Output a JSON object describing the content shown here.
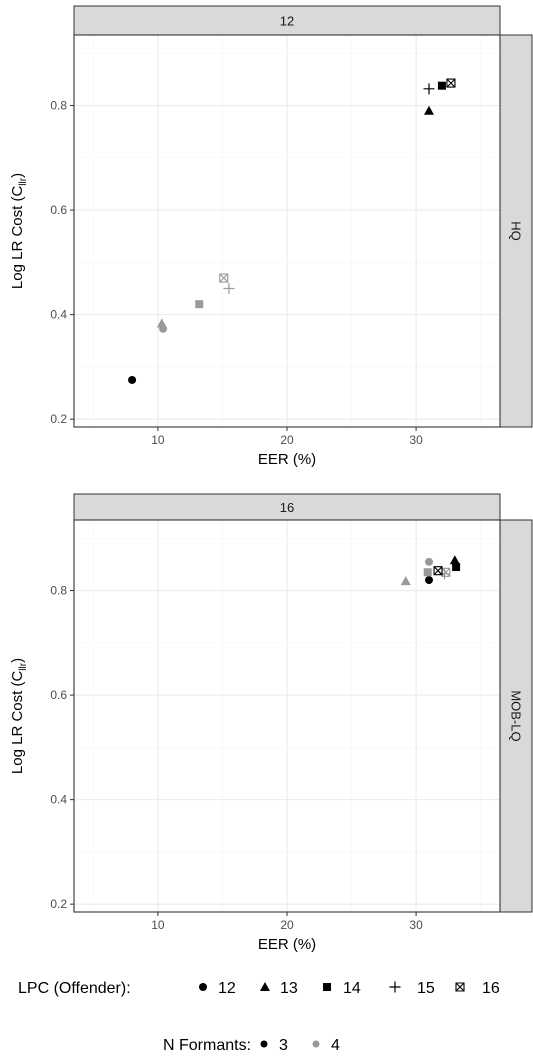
{
  "chart_data": [
    {
      "type": "scatter",
      "strip_top": "12",
      "strip_right": "HQ",
      "xlabel": "EER (%)",
      "ylabel_main": "Log LR Cost (C",
      "ylabel_sub": "llr",
      "ylabel_close": ")",
      "xlim": [
        3.5,
        36.5
      ],
      "ylim": [
        0.185,
        0.935
      ],
      "xticks": [
        10,
        20,
        30
      ],
      "yticks": [
        0.2,
        0.4,
        0.6,
        0.8
      ],
      "ytick_labels": [
        "0.2",
        "0.4",
        "0.6",
        "0.8"
      ],
      "points": [
        {
          "lpc": "12",
          "nf": "3",
          "x": 8.0,
          "y": 0.275
        },
        {
          "lpc": "12",
          "nf": "4",
          "x": 10.4,
          "y": 0.373
        },
        {
          "lpc": "13",
          "nf": "4",
          "x": 10.3,
          "y": 0.383
        },
        {
          "lpc": "14",
          "nf": "4",
          "x": 13.2,
          "y": 0.42
        },
        {
          "lpc": "15",
          "nf": "4",
          "x": 15.5,
          "y": 0.45
        },
        {
          "lpc": "16",
          "nf": "4",
          "x": 15.1,
          "y": 0.47
        },
        {
          "lpc": "13",
          "nf": "3",
          "x": 31.0,
          "y": 0.79
        },
        {
          "lpc": "15",
          "nf": "3",
          "x": 31.0,
          "y": 0.832
        },
        {
          "lpc": "14",
          "nf": "3",
          "x": 32.0,
          "y": 0.838
        },
        {
          "lpc": "16",
          "nf": "3",
          "x": 32.7,
          "y": 0.843
        }
      ]
    },
    {
      "type": "scatter",
      "strip_top": "16",
      "strip_right": "MOB-LQ",
      "xlabel": "EER (%)",
      "ylabel_main": "Log LR Cost (C",
      "ylabel_sub": "llr",
      "ylabel_close": ")",
      "xlim": [
        3.5,
        36.5
      ],
      "ylim": [
        0.185,
        0.935
      ],
      "xticks": [
        10,
        20,
        30
      ],
      "yticks": [
        0.2,
        0.4,
        0.6,
        0.8
      ],
      "ytick_labels": [
        "0.2",
        "0.4",
        "0.6",
        "0.8"
      ],
      "points": [
        {
          "lpc": "13",
          "nf": "4",
          "x": 29.2,
          "y": 0.818
        },
        {
          "lpc": "12",
          "nf": "3",
          "x": 31.0,
          "y": 0.82
        },
        {
          "lpc": "14",
          "nf": "4",
          "x": 30.9,
          "y": 0.835
        },
        {
          "lpc": "12",
          "nf": "4",
          "x": 31.0,
          "y": 0.855
        },
        {
          "lpc": "15",
          "nf": "4",
          "x": 32.2,
          "y": 0.832
        },
        {
          "lpc": "16",
          "nf": "4",
          "x": 32.3,
          "y": 0.835
        },
        {
          "lpc": "16",
          "nf": "3",
          "x": 31.7,
          "y": 0.838
        },
        {
          "lpc": "13",
          "nf": "3",
          "x": 33.0,
          "y": 0.858
        },
        {
          "lpc": "14",
          "nf": "3",
          "x": 33.1,
          "y": 0.845
        }
      ]
    }
  ],
  "legend": {
    "lpc_title": "LPC (Offender):",
    "lpc_items": [
      {
        "label": "12",
        "shape": "circle"
      },
      {
        "label": "13",
        "shape": "triangle"
      },
      {
        "label": "14",
        "shape": "square"
      },
      {
        "label": "15",
        "shape": "plus"
      },
      {
        "label": "16",
        "shape": "square-x"
      }
    ],
    "nf_title": "N Formants:",
    "nf_items": [
      {
        "label": "3",
        "color": "#000000"
      },
      {
        "label": "4",
        "color": "#999999"
      }
    ]
  },
  "shape_map": {
    "12": "circle",
    "13": "triangle",
    "14": "square",
    "15": "plus",
    "16": "square-x"
  },
  "color_map": {
    "3": "#000000",
    "4": "#999999"
  },
  "style": {
    "strip_fill": "#d9d9d9",
    "grid_major": "#ebebeb",
    "grid_minor": "#f5f5f5",
    "frame": "#333333"
  }
}
